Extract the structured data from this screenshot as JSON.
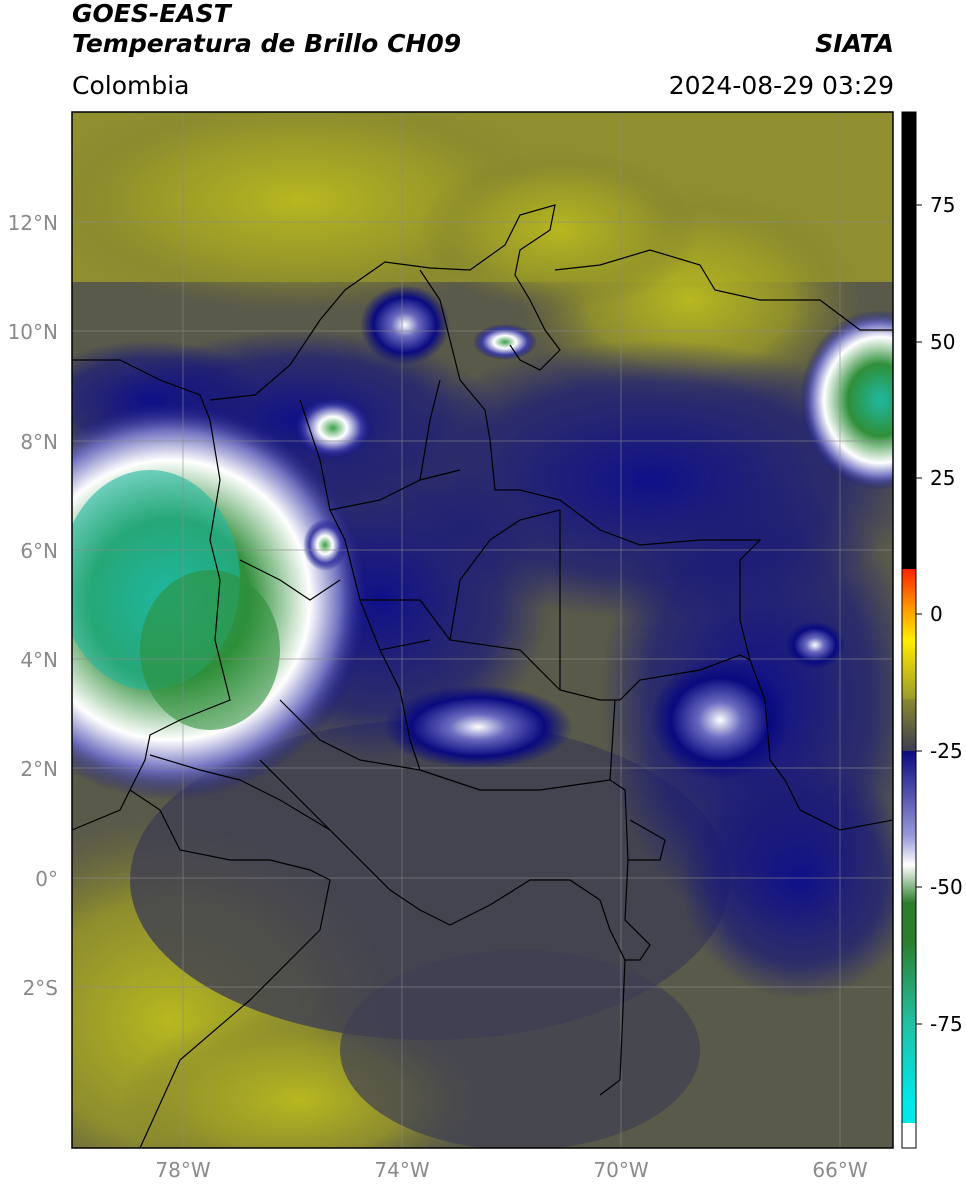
{
  "header": {
    "satellite": "GOES-EAST",
    "product": "Temperatura de Brillo CH09",
    "region": "Colombia",
    "agency": "SIATA",
    "timestamp": "2024-08-29 03:29"
  },
  "map": {
    "lat_labels": [
      "12°N",
      "10°N",
      "8°N",
      "6°N",
      "4°N",
      "2°N",
      "0°",
      "2°S"
    ],
    "lon_labels": [
      "78°W",
      "74°W",
      "70°W",
      "66°W"
    ]
  },
  "colorbar": {
    "tick_labels": [
      "75",
      "50",
      "25",
      "0",
      "-25",
      "-50",
      "-75"
    ],
    "colors": {
      "black": "#000000",
      "red": "#ff2200",
      "orange": "#ff9900",
      "yellow": "#ffee00",
      "olive": "#9a9a28",
      "gray": "#3c3c50",
      "navy": "#0a0a80",
      "white": "#ffffff",
      "green": "#2e7d2e",
      "teal": "#20c0a0",
      "cyan": "#00e8e8"
    }
  }
}
